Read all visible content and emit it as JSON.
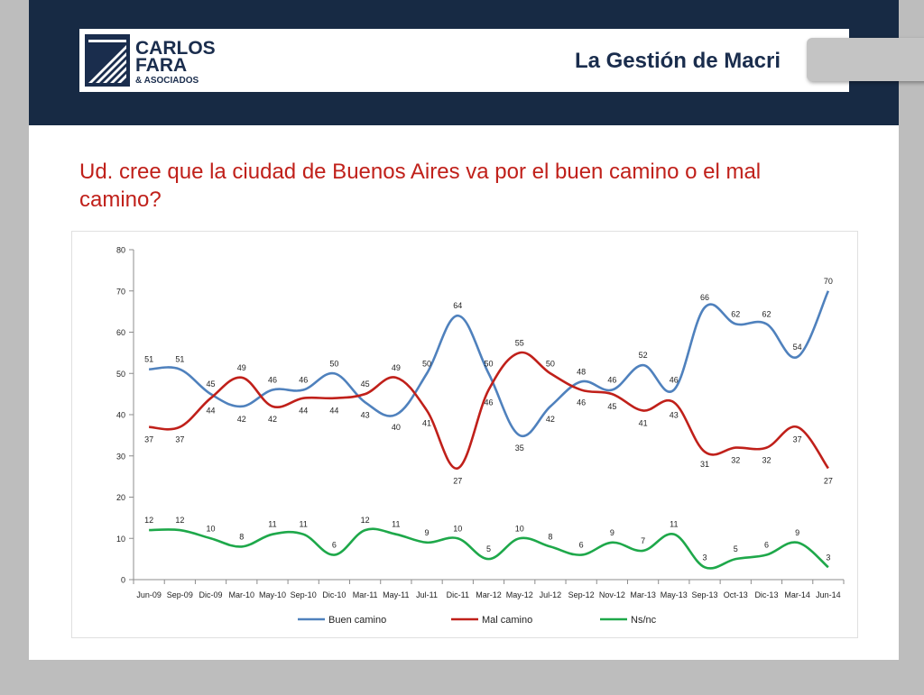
{
  "header": {
    "logo_text_line1": "CARLOS",
    "logo_text_line2": "FARA",
    "logo_text_line3": "& ASOCIADOS",
    "title": "La Gestión de Macri"
  },
  "question": "Ud. cree que la ciudad de Buenos Aires va por el buen camino o el mal camino?",
  "colors": {
    "header_band": "#172a44",
    "question_text": "#c0201a",
    "buen_camino": "#4f81bd",
    "mal_camino": "#c0201a",
    "ns_nc": "#1ea84a"
  },
  "chart_data": {
    "type": "line",
    "categories": [
      "Jun-09",
      "Sep-09",
      "Dic-09",
      "Mar-10",
      "May-10",
      "Sep-10",
      "Dic-10",
      "Mar-11",
      "May-11",
      "Jul-11",
      "Dic-11",
      "Mar-12",
      "May-12",
      "Jul-12",
      "Sep-12",
      "Nov-12",
      "Mar-13",
      "May-13",
      "Sep-13",
      "Oct-13",
      "Dic-13",
      "Mar-14",
      "Jun-14"
    ],
    "ylim": [
      0,
      80
    ],
    "yticks": [
      0,
      10,
      20,
      30,
      40,
      50,
      60,
      70,
      80
    ],
    "grid": false,
    "legend_position": "bottom",
    "series": [
      {
        "name": "Buen camino",
        "color": "#4f81bd",
        "values": [
          51,
          51,
          45,
          42,
          46,
          46,
          50,
          43,
          40,
          50,
          64,
          50,
          35,
          42,
          48,
          46,
          52,
          46,
          66,
          62,
          62,
          54,
          70
        ]
      },
      {
        "name": "Mal camino",
        "color": "#c0201a",
        "values": [
          37,
          37,
          44,
          49,
          42,
          44,
          44,
          45,
          49,
          41,
          27,
          46,
          55,
          50,
          46,
          45,
          41,
          43,
          31,
          32,
          32,
          37,
          27
        ]
      },
      {
        "name": "Ns/nc",
        "color": "#1ea84a",
        "values": [
          12,
          12,
          10,
          8,
          11,
          11,
          6,
          12,
          11,
          9,
          10,
          5,
          10,
          8,
          6,
          9,
          7,
          11,
          3,
          5,
          6,
          9,
          3
        ]
      }
    ]
  }
}
